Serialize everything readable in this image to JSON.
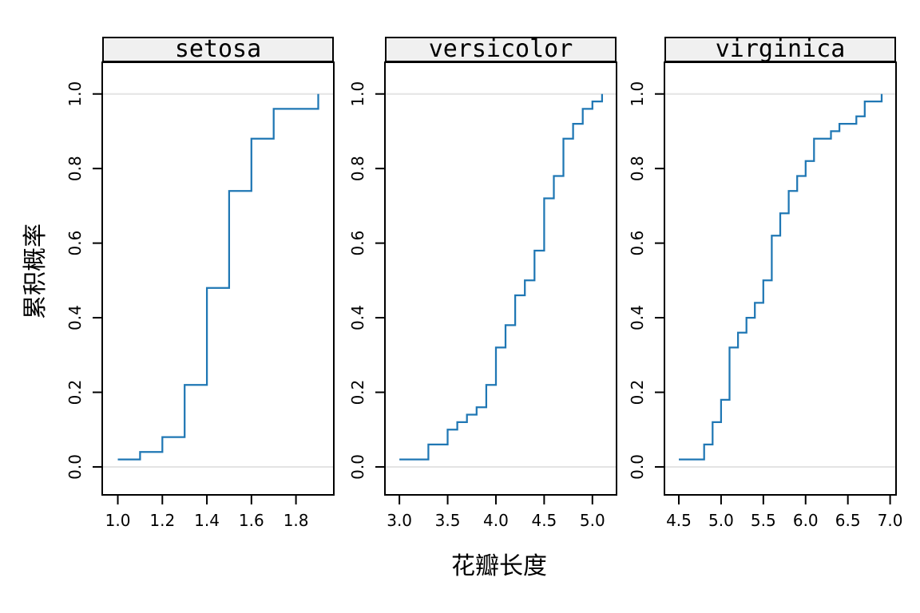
{
  "figure": {
    "background": "#ffffff",
    "border_color": "#000000",
    "strip_fill": "#f0f0f0",
    "grid_color": "#e4e4e4",
    "tick_color": "#000000",
    "text_color": "#000000"
  },
  "chart_data": {
    "type": "line",
    "subtype": "ecdf_step_trellis",
    "title": "",
    "xlabel": "花瓣长度",
    "ylabel": "累积概率",
    "ylim": [
      0,
      1
    ],
    "ydomain": [
      -0.075,
      1.085
    ],
    "yticks": [
      0.0,
      0.2,
      0.4,
      0.6,
      0.8,
      1.0
    ],
    "grid": "horizontal reference lines at y=0 and y=1 only",
    "reference_lines_y": [
      0,
      1
    ],
    "legend": "none",
    "line_color": "#1f77b4",
    "panels": [
      {
        "label": "setosa",
        "xticks": [
          1.0,
          1.2,
          1.4,
          1.6,
          1.8
        ],
        "xdomain": [
          0.93,
          1.97
        ],
        "points": [
          [
            1.0,
            0.02
          ],
          [
            1.1,
            0.04
          ],
          [
            1.2,
            0.08
          ],
          [
            1.3,
            0.22
          ],
          [
            1.4,
            0.48
          ],
          [
            1.5,
            0.74
          ],
          [
            1.6,
            0.88
          ],
          [
            1.7,
            0.96
          ],
          [
            1.9,
            1.0
          ]
        ]
      },
      {
        "label": "versicolor",
        "xticks": [
          3.0,
          3.5,
          4.0,
          4.5,
          5.0
        ],
        "xdomain": [
          2.85,
          5.25
        ],
        "points": [
          [
            3.0,
            0.02
          ],
          [
            3.3,
            0.06
          ],
          [
            3.5,
            0.1
          ],
          [
            3.6,
            0.12
          ],
          [
            3.7,
            0.14
          ],
          [
            3.8,
            0.16
          ],
          [
            3.9,
            0.22
          ],
          [
            4.0,
            0.32
          ],
          [
            4.1,
            0.38
          ],
          [
            4.2,
            0.46
          ],
          [
            4.3,
            0.5
          ],
          [
            4.4,
            0.58
          ],
          [
            4.5,
            0.72
          ],
          [
            4.6,
            0.78
          ],
          [
            4.7,
            0.88
          ],
          [
            4.8,
            0.92
          ],
          [
            4.9,
            0.96
          ],
          [
            5.0,
            0.98
          ],
          [
            5.1,
            1.0
          ]
        ]
      },
      {
        "label": "virginica",
        "xticks": [
          4.5,
          5.0,
          5.5,
          6.0,
          6.5,
          7.0
        ],
        "xdomain": [
          4.33,
          7.07
        ],
        "points": [
          [
            4.5,
            0.02
          ],
          [
            4.8,
            0.06
          ],
          [
            4.9,
            0.12
          ],
          [
            5.0,
            0.18
          ],
          [
            5.1,
            0.32
          ],
          [
            5.2,
            0.36
          ],
          [
            5.3,
            0.4
          ],
          [
            5.4,
            0.44
          ],
          [
            5.5,
            0.5
          ],
          [
            5.6,
            0.62
          ],
          [
            5.7,
            0.68
          ],
          [
            5.8,
            0.74
          ],
          [
            5.9,
            0.78
          ],
          [
            6.0,
            0.82
          ],
          [
            6.1,
            0.88
          ],
          [
            6.3,
            0.9
          ],
          [
            6.4,
            0.92
          ],
          [
            6.6,
            0.94
          ],
          [
            6.7,
            0.98
          ],
          [
            6.9,
            1.0
          ]
        ]
      }
    ]
  }
}
